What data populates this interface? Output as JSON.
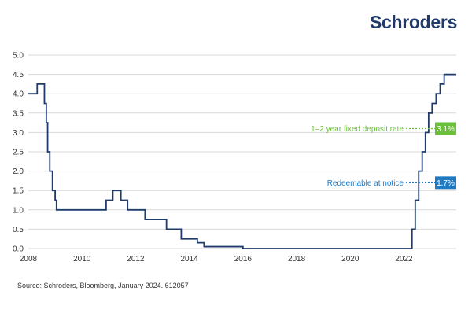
{
  "logo": "Schroders",
  "source": "Source: Schroders, Bloomberg, January 2024. 612057",
  "colors": {
    "line": "#1f3a6b",
    "grid": "#d9d9d9",
    "green": "#6cbf3b",
    "blue": "#1f7ac4"
  },
  "chart_data": {
    "type": "line",
    "title": "",
    "xlabel": "",
    "ylabel": "",
    "xlim": [
      2008.0,
      2023.95
    ],
    "ylim": [
      0,
      5.0
    ],
    "grid": true,
    "x_ticks": [
      "2008",
      "2010",
      "2012",
      "2014",
      "2016",
      "2018",
      "2020",
      "2022"
    ],
    "y_ticks": [
      "0.0",
      "0.5",
      "1.0",
      "1.5",
      "2.0",
      "2.5",
      "3.0",
      "3.5",
      "4.0",
      "4.5",
      "5.0"
    ],
    "series": [
      {
        "name": "",
        "step": true,
        "x": [
          2008.0,
          2008.33,
          2008.6,
          2008.67,
          2008.72,
          2008.8,
          2008.9,
          2009.0,
          2009.05,
          2009.12,
          2010.9,
          2011.15,
          2011.45,
          2011.7,
          2011.8,
          2012.35,
          2013.15,
          2013.7,
          2014.3,
          2014.55,
          2016.0,
          2022.3,
          2022.42,
          2022.55,
          2022.68,
          2022.8,
          2022.92,
          2023.05,
          2023.2,
          2023.35,
          2023.5,
          2023.6,
          2023.95
        ],
        "y": [
          4.0,
          4.25,
          3.75,
          3.25,
          2.5,
          2.0,
          1.5,
          1.25,
          1.0,
          1.0,
          1.25,
          1.5,
          1.25,
          1.0,
          1.0,
          0.75,
          0.5,
          0.25,
          0.15,
          0.05,
          0.0,
          0.5,
          1.25,
          2.0,
          2.5,
          3.0,
          3.5,
          3.75,
          4.0,
          4.25,
          4.5,
          4.5,
          4.5
        ]
      }
    ],
    "annotations": [
      {
        "label": "1–2 year fixed deposit rate",
        "value_label": "3.1%",
        "y": 3.1,
        "color": "green"
      },
      {
        "label": "Redeemable at notice",
        "value_label": "1.7%",
        "y": 1.7,
        "color": "blue"
      }
    ]
  }
}
